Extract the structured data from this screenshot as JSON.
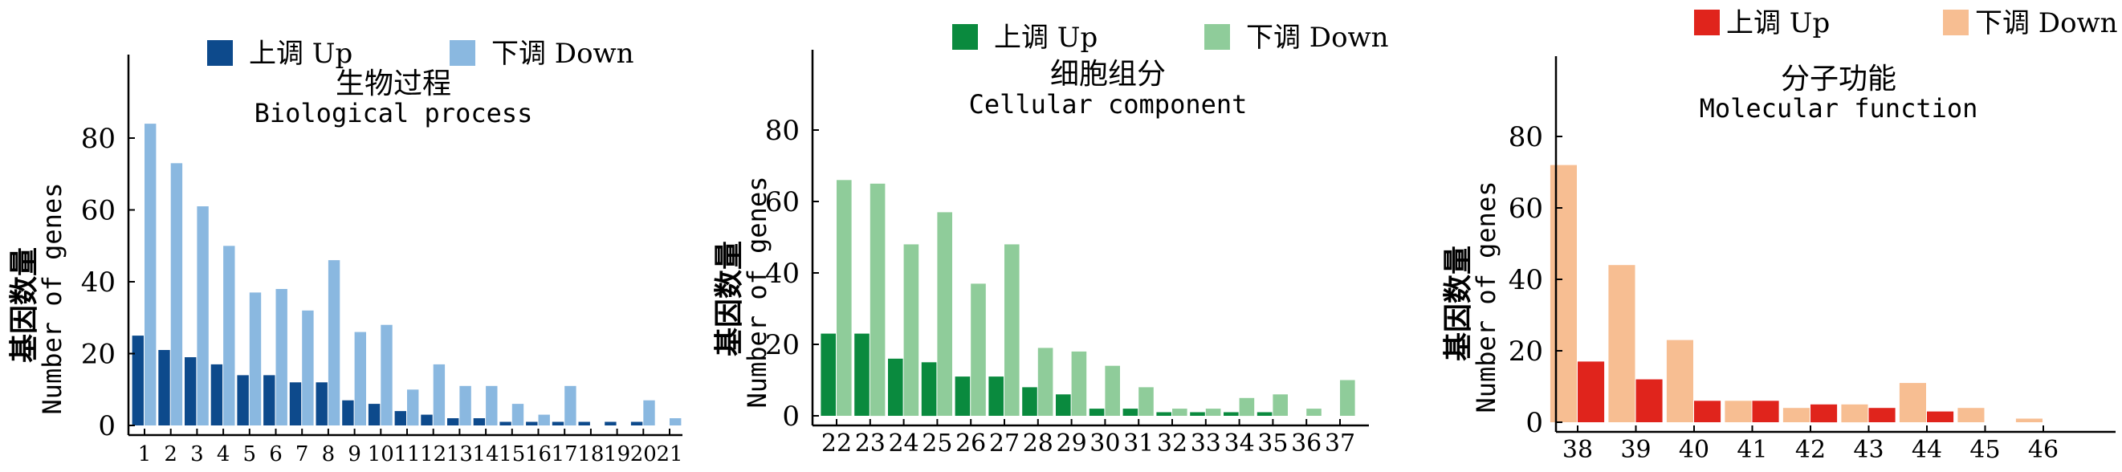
{
  "chart_data": [
    {
      "type": "bar",
      "title": "生物过程",
      "subtitle": "Biological process",
      "ylabel_cn": "基因数量",
      "ylabel": "Number of genes",
      "yticks": [
        0,
        20,
        40,
        60,
        80
      ],
      "ylim": [
        0,
        104
      ],
      "colors": {
        "up": "#0d4a8c",
        "down": "#8ab8e0"
      },
      "legend": {
        "up": "上调 Up",
        "down": "下调 Down",
        "position": "top"
      },
      "categories": [
        "1",
        "2",
        "3",
        "4",
        "5",
        "6",
        "7",
        "8",
        "9",
        "10",
        "11",
        "12",
        "13",
        "14",
        "15",
        "16",
        "17",
        "18",
        "19",
        "20",
        "21"
      ],
      "series": [
        {
          "name": "上调 Up",
          "values": [
            25,
            21,
            19,
            17,
            14,
            14,
            12,
            12,
            7,
            6,
            4,
            3,
            2,
            2,
            1,
            1,
            1,
            1,
            1,
            1,
            0
          ]
        },
        {
          "name": "下调 Down",
          "values": [
            84,
            73,
            61,
            50,
            37,
            38,
            32,
            46,
            26,
            28,
            10,
            17,
            11,
            11,
            6,
            3,
            11,
            0,
            0,
            7,
            2
          ]
        }
      ]
    },
    {
      "type": "bar",
      "title": "细胞组分",
      "subtitle": "Cellular component",
      "ylabel_cn": "基因数量",
      "ylabel": "Number of genes",
      "yticks": [
        0,
        20,
        40,
        60,
        80
      ],
      "ylim": [
        0,
        100
      ],
      "colors": {
        "up": "#0a8a3e",
        "down": "#8fcc9a"
      },
      "legend": {
        "up": "上调 Up",
        "down": "下调 Down",
        "position": "top"
      },
      "categories": [
        "22",
        "23",
        "24",
        "25",
        "26",
        "27",
        "28",
        "29",
        "30",
        "31",
        "32",
        "33",
        "34",
        "35",
        "36",
        "37"
      ],
      "series": [
        {
          "name": "上调 Up",
          "values": [
            23,
            23,
            16,
            15,
            11,
            11,
            8,
            6,
            2,
            2,
            1,
            1,
            1,
            1,
            0,
            0
          ]
        },
        {
          "name": "下调 Down",
          "values": [
            66,
            65,
            48,
            57,
            37,
            48,
            19,
            18,
            14,
            8,
            2,
            2,
            5,
            6,
            2,
            10
          ]
        }
      ]
    },
    {
      "type": "bar",
      "title": "分子功能",
      "subtitle": "Molecular function",
      "ylabel_cn": "基因数量",
      "ylabel": "Number of genes",
      "yticks": [
        0,
        20,
        40,
        60,
        80
      ],
      "ylim": [
        0,
        104
      ],
      "colors": {
        "up": "#e0241c",
        "down": "#f7be92"
      },
      "legend": {
        "up": "上调 Up",
        "down": "下调 Down",
        "position": "top"
      },
      "categories": [
        "38",
        "39",
        "40",
        "41",
        "42",
        "43",
        "44",
        "45",
        "46"
      ],
      "series": [
        {
          "name": "下调 Down",
          "values": [
            72,
            44,
            23,
            6,
            4,
            5,
            11,
            4,
            1
          ]
        },
        {
          "name": "上调 Up",
          "values": [
            17,
            12,
            6,
            6,
            5,
            4,
            3,
            0,
            0
          ]
        }
      ]
    }
  ]
}
